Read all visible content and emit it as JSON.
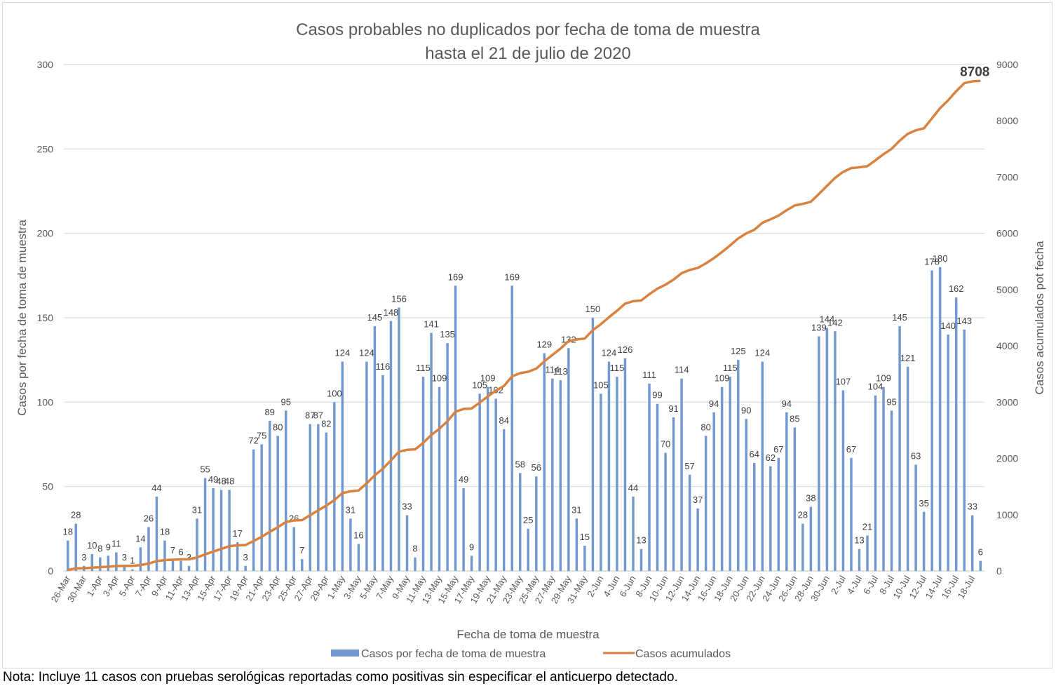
{
  "chart_data": {
    "type": "bar+line",
    "title": [
      "Casos probables no duplicados por fecha de toma de muestra",
      "hasta el 21 de julio de 2020"
    ],
    "xlabel": "Fecha de toma de muestra",
    "ylabel_left": "Casos por fecha de toma de muestra",
    "ylabel_right": "Casos acumulados pot fecha",
    "ylim_left": [
      0,
      300
    ],
    "yticks_left": [
      0,
      50,
      100,
      150,
      200,
      250,
      300
    ],
    "ylim_right": [
      0,
      9000
    ],
    "yticks_right": [
      0,
      1000,
      2000,
      3000,
      4000,
      5000,
      6000,
      7000,
      8000,
      9000
    ],
    "grid": true,
    "legend_position": "bottom",
    "x_tick_labels_shown": [
      "26-Mar",
      "30-Mar",
      "1-Apr",
      "3-Apr",
      "5-Apr",
      "7-Apr",
      "9-Apr",
      "11-Apr",
      "13-Apr",
      "15-Apr",
      "17-Apr",
      "19-Apr",
      "21-Apr",
      "23-Apr",
      "25-Apr",
      "27-Apr",
      "29-Apr",
      "1-May",
      "3-May",
      "5-May",
      "7-May",
      "9-May",
      "11-May",
      "13-May",
      "15-May",
      "17-May",
      "19-May",
      "21-May",
      "23-May",
      "25-May",
      "27-May",
      "29-May",
      "31-May",
      "2-Jun",
      "4-Jun",
      "6-Jun",
      "8-Jun",
      "10-Jun",
      "12-Jun",
      "14-Jun",
      "16-Jun",
      "18-Jun",
      "20-Jun",
      "22-Jun",
      "24-Jun",
      "26-Jun",
      "28-Jun",
      "30-Jun",
      "2-Jul",
      "4-Jul",
      "6-Jul",
      "8-Jul",
      "10-Jul",
      "12-Jul",
      "14-Jul",
      "16-Jul",
      "18-Jul"
    ],
    "series": [
      {
        "name": "Casos por fecha de toma de muestra",
        "type": "bar",
        "axis": "left",
        "color": "#7199d0",
        "values": [
          18,
          28,
          3,
          10,
          8,
          9,
          11,
          3,
          1,
          14,
          26,
          44,
          18,
          7,
          6,
          3,
          31,
          55,
          49,
          48,
          48,
          17,
          3,
          72,
          75,
          89,
          80,
          95,
          26,
          7,
          87,
          87,
          82,
          100,
          124,
          31,
          16,
          124,
          145,
          116,
          148,
          156,
          33,
          8,
          115,
          141,
          109,
          135,
          169,
          49,
          9,
          105,
          109,
          102,
          84,
          169,
          58,
          25,
          56,
          129,
          114,
          113,
          132,
          31,
          15,
          150,
          105,
          124,
          115,
          126,
          44,
          13,
          111,
          99,
          70,
          91,
          114,
          57,
          37,
          80,
          94,
          109,
          115,
          125,
          90,
          64,
          124,
          62,
          67,
          94,
          85,
          28,
          38,
          139,
          144,
          142,
          107,
          67,
          13,
          21,
          104,
          109,
          95,
          145,
          121,
          63,
          35,
          178,
          180,
          140,
          162,
          143,
          33,
          6
        ]
      },
      {
        "name": "Casos acumulados",
        "type": "line",
        "axis": "right",
        "color": "#d9823f",
        "cumulative_of": "Casos por fecha de toma de muestra",
        "final_value": 8708
      }
    ],
    "annotations": [
      {
        "text": "8708",
        "target": "Casos acumulados last point"
      }
    ]
  },
  "note": "Nota: Incluye 11 casos con pruebas serológicas reportadas como positivas sin especificar el anticuerpo detectado."
}
